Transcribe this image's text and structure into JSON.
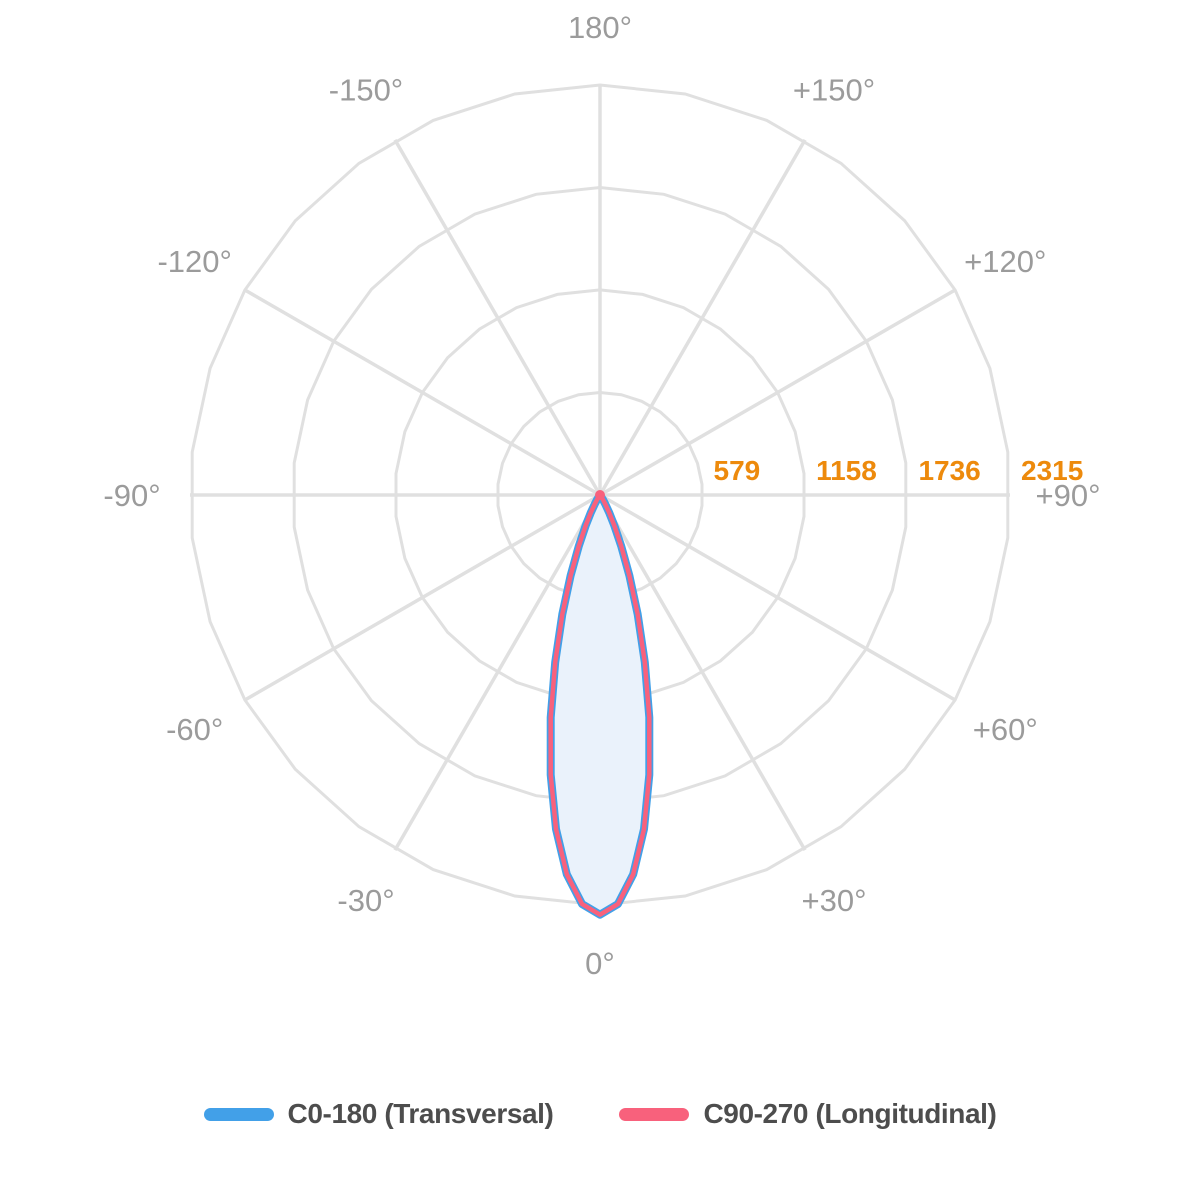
{
  "chart_data": {
    "type": "polar",
    "description": "Photometric luminous intensity distribution (polar diagram), beam pointing to 0° (down)",
    "grid": {
      "ring_values": [
        579,
        1158,
        1736,
        2315
      ],
      "scale_max": 2315,
      "spoke_step_deg": 30,
      "angle_labels": [
        {
          "angle": 0,
          "label": "0°"
        },
        {
          "angle": 30,
          "label": "+30°"
        },
        {
          "angle": 60,
          "label": "+60°"
        },
        {
          "angle": 90,
          "label": "+90°"
        },
        {
          "angle": 120,
          "label": "+120°"
        },
        {
          "angle": 150,
          "label": "+150°"
        },
        {
          "angle": 180,
          "label": "180°"
        },
        {
          "angle": -150,
          "label": "-150°"
        },
        {
          "angle": -120,
          "label": "-120°"
        },
        {
          "angle": -90,
          "label": "-90°"
        },
        {
          "angle": -60,
          "label": "-60°"
        },
        {
          "angle": -30,
          "label": "-30°"
        }
      ]
    },
    "colors": {
      "grid_line": "#e0e0e0",
      "angle_label": "#9b9b9b",
      "ring_label": "#ed8a0c",
      "legend_text": "#4d4d4d",
      "background": "#ffffff"
    },
    "series": [
      {
        "name": "C0-180 (Transversal)",
        "color": "#42a0e8",
        "fill": "#eaf2fb",
        "points": [
          [
            -90,
            0
          ],
          [
            -50,
            0
          ],
          [
            -45,
            1
          ],
          [
            -40,
            3
          ],
          [
            -37.5,
            6
          ],
          [
            -35,
            14
          ],
          [
            -32.5,
            30
          ],
          [
            -30,
            60
          ],
          [
            -27.5,
            111
          ],
          [
            -25,
            192
          ],
          [
            -22.5,
            314
          ],
          [
            -20,
            485
          ],
          [
            -17.5,
            707
          ],
          [
            -15,
            978
          ],
          [
            -12.5,
            1286
          ],
          [
            -10,
            1604
          ],
          [
            -7.5,
            1903
          ],
          [
            -5,
            2150
          ],
          [
            -2.5,
            2312
          ],
          [
            0,
            2370
          ],
          [
            2.5,
            2312
          ],
          [
            5,
            2150
          ],
          [
            7.5,
            1903
          ],
          [
            10,
            1604
          ],
          [
            12.5,
            1286
          ],
          [
            15,
            978
          ],
          [
            17.5,
            707
          ],
          [
            20,
            485
          ],
          [
            22.5,
            314
          ],
          [
            25,
            192
          ],
          [
            27.5,
            111
          ],
          [
            30,
            60
          ],
          [
            32.5,
            30
          ],
          [
            35,
            14
          ],
          [
            37.5,
            6
          ],
          [
            40,
            3
          ],
          [
            45,
            1
          ],
          [
            50,
            0
          ],
          [
            90,
            0
          ]
        ]
      },
      {
        "name": "C90-270 (Longitudinal)",
        "color": "#f8617c",
        "fill": "none",
        "points": [
          [
            -90,
            0
          ],
          [
            -50,
            0
          ],
          [
            -45,
            1
          ],
          [
            -40,
            3
          ],
          [
            -37.5,
            6
          ],
          [
            -35,
            14
          ],
          [
            -32.5,
            30
          ],
          [
            -30,
            60
          ],
          [
            -27.5,
            111
          ],
          [
            -25,
            192
          ],
          [
            -22.5,
            314
          ],
          [
            -20,
            485
          ],
          [
            -17.5,
            707
          ],
          [
            -15,
            978
          ],
          [
            -12.5,
            1286
          ],
          [
            -10,
            1604
          ],
          [
            -7.5,
            1903
          ],
          [
            -5,
            2150
          ],
          [
            -2.5,
            2312
          ],
          [
            0,
            2370
          ],
          [
            2.5,
            2312
          ],
          [
            5,
            2150
          ],
          [
            7.5,
            1903
          ],
          [
            10,
            1604
          ],
          [
            12.5,
            1286
          ],
          [
            15,
            978
          ],
          [
            17.5,
            707
          ],
          [
            20,
            485
          ],
          [
            22.5,
            314
          ],
          [
            25,
            192
          ],
          [
            27.5,
            111
          ],
          [
            30,
            60
          ],
          [
            32.5,
            30
          ],
          [
            35,
            14
          ],
          [
            37.5,
            6
          ],
          [
            40,
            3
          ],
          [
            45,
            1
          ],
          [
            50,
            0
          ],
          [
            90,
            0
          ]
        ]
      }
    ],
    "legend": {
      "items": [
        {
          "label": "C0-180 (Transversal)",
          "color": "#42a0e8"
        },
        {
          "label": "C90-270 (Longitudinal)",
          "color": "#f8617c"
        }
      ]
    }
  }
}
